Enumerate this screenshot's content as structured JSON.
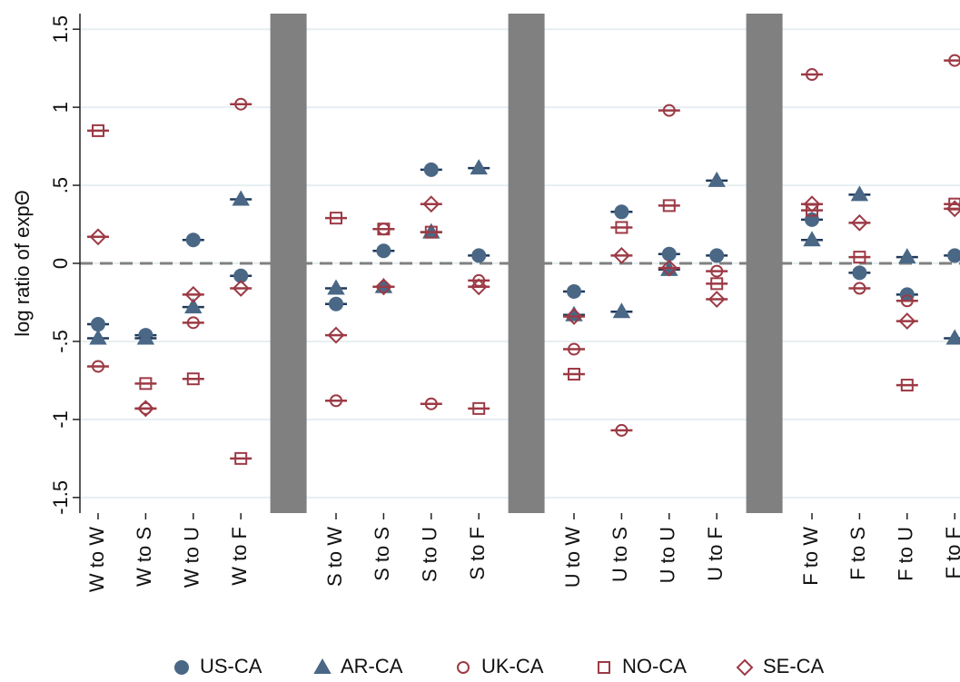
{
  "chart_data": {
    "type": "scatter",
    "y_label": "log ratio of expΘ",
    "categories": [
      "W to W",
      "W to S",
      "W to U",
      "W to F",
      null,
      "S to W",
      "S to S",
      "S to U",
      "S to F",
      null,
      "U to W",
      "U to S",
      "U to U",
      "U to F",
      null,
      "F to W",
      "F to S",
      "F to U",
      "F to F"
    ],
    "ylim": [
      -1.6,
      1.6
    ],
    "yticks": [
      -1.5,
      -1,
      {
        "value": -0.5,
        "label": "-.5"
      },
      0,
      {
        "value": 0.5,
        "label": ".5"
      },
      1,
      1.5
    ],
    "grid": true,
    "reference_line": 0,
    "separator_color": "#808080",
    "series": [
      {
        "name": "US-CA",
        "marker": "circle",
        "filled": true,
        "color": "#4a6786",
        "values": [
          -0.39,
          -0.46,
          0.15,
          -0.08,
          null,
          -0.26,
          0.08,
          0.6,
          0.05,
          null,
          -0.18,
          0.33,
          0.06,
          0.05,
          null,
          0.28,
          -0.06,
          -0.2,
          0.05
        ]
      },
      {
        "name": "AR-CA",
        "marker": "triangle",
        "filled": true,
        "color": "#4a6786",
        "values": [
          -0.48,
          -0.48,
          -0.28,
          0.41,
          null,
          -0.16,
          -0.15,
          0.2,
          0.61,
          null,
          -0.33,
          -0.31,
          -0.04,
          0.53,
          null,
          0.15,
          0.44,
          0.04,
          -0.48
        ]
      },
      {
        "name": "UK-CA",
        "marker": "circle",
        "filled": false,
        "color": "#9c3a45",
        "values": [
          -0.66,
          -0.93,
          -0.38,
          1.02,
          null,
          -0.88,
          0.22,
          -0.9,
          -0.11,
          null,
          -0.55,
          -1.07,
          0.98,
          -0.05,
          null,
          1.21,
          -0.16,
          -0.24,
          1.3
        ]
      },
      {
        "name": "NO-CA",
        "marker": "square",
        "filled": false,
        "color": "#9c3a45",
        "values": [
          0.85,
          -0.77,
          -0.74,
          -1.25,
          null,
          0.29,
          0.22,
          0.2,
          -0.93,
          null,
          -0.71,
          0.23,
          0.37,
          -0.13,
          null,
          0.34,
          0.04,
          -0.78,
          0.38
        ]
      },
      {
        "name": "SE-CA",
        "marker": "diamond",
        "filled": false,
        "color": "#9c3a45",
        "values": [
          0.17,
          -0.93,
          -0.2,
          -0.16,
          null,
          -0.46,
          -0.15,
          0.38,
          -0.15,
          null,
          -0.34,
          0.05,
          -0.03,
          -0.23,
          null,
          0.38,
          0.26,
          -0.37,
          0.35
        ]
      }
    ]
  }
}
